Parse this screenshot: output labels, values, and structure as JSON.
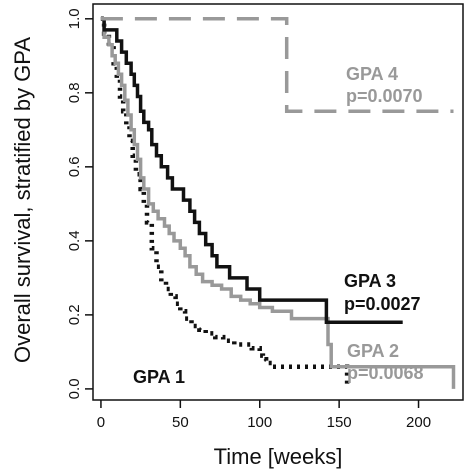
{
  "chart_data": {
    "type": "line",
    "step": true,
    "xlabel": "Time [weeks]",
    "ylabel": "Overall survival, stratified by GPA",
    "xlim": [
      -5,
      228
    ],
    "ylim": [
      -0.03,
      1.04
    ],
    "xticks": [
      0,
      50,
      100,
      150,
      200
    ],
    "yticks": [
      0.0,
      0.2,
      0.4,
      0.6,
      0.8,
      1.0
    ],
    "xtick_labels": [
      "0",
      "50",
      "100",
      "150",
      "200"
    ],
    "ytick_labels": [
      "0.0",
      "0.2",
      "0.4",
      "0.6",
      "0.8",
      "1.0"
    ],
    "grid": false,
    "series": [
      {
        "name": "GPA 1",
        "label": "GPA 1",
        "color": "#111111",
        "style": "dotted",
        "points": [
          [
            0,
            1.0
          ],
          [
            2,
            0.96
          ],
          [
            5,
            0.92
          ],
          [
            8,
            0.88
          ],
          [
            10,
            0.84
          ],
          [
            12,
            0.79
          ],
          [
            14,
            0.75
          ],
          [
            16,
            0.71
          ],
          [
            18,
            0.67
          ],
          [
            20,
            0.63
          ],
          [
            22,
            0.58
          ],
          [
            25,
            0.54
          ],
          [
            27,
            0.5
          ],
          [
            29,
            0.45
          ],
          [
            32,
            0.38
          ],
          [
            35,
            0.33
          ],
          [
            38,
            0.29
          ],
          [
            41,
            0.27
          ],
          [
            44,
            0.25
          ],
          [
            47,
            0.23
          ],
          [
            50,
            0.21
          ],
          [
            53,
            0.19
          ],
          [
            57,
            0.17
          ],
          [
            62,
            0.16
          ],
          [
            66,
            0.15
          ],
          [
            72,
            0.14
          ],
          [
            77,
            0.13
          ],
          [
            84,
            0.12
          ],
          [
            90,
            0.12
          ],
          [
            95,
            0.11
          ],
          [
            100,
            0.09
          ],
          [
            102,
            0.08
          ],
          [
            104,
            0.07
          ],
          [
            108,
            0.06
          ],
          [
            140,
            0.06
          ],
          [
            155,
            0.06
          ],
          [
            155,
            0.01
          ]
        ]
      },
      {
        "name": "GPA 2",
        "label": "GPA 2",
        "pvalue": "p=0.0068",
        "color": "#999999",
        "style": "solid",
        "points": [
          [
            0,
            1.0
          ],
          [
            2,
            0.95
          ],
          [
            5,
            0.93
          ],
          [
            7,
            0.9
          ],
          [
            9,
            0.88
          ],
          [
            11,
            0.85
          ],
          [
            13,
            0.82
          ],
          [
            15,
            0.78
          ],
          [
            17,
            0.74
          ],
          [
            19,
            0.7
          ],
          [
            21,
            0.66
          ],
          [
            23,
            0.62
          ],
          [
            25,
            0.57
          ],
          [
            27,
            0.54
          ],
          [
            30,
            0.5
          ],
          [
            33,
            0.48
          ],
          [
            36,
            0.46
          ],
          [
            40,
            0.44
          ],
          [
            43,
            0.42
          ],
          [
            46,
            0.4
          ],
          [
            50,
            0.38
          ],
          [
            53,
            0.36
          ],
          [
            56,
            0.33
          ],
          [
            60,
            0.31
          ],
          [
            64,
            0.29
          ],
          [
            70,
            0.28
          ],
          [
            76,
            0.27
          ],
          [
            82,
            0.25
          ],
          [
            88,
            0.24
          ],
          [
            94,
            0.23
          ],
          [
            100,
            0.22
          ],
          [
            108,
            0.21
          ],
          [
            116,
            0.21
          ],
          [
            120,
            0.19
          ],
          [
            130,
            0.19
          ],
          [
            140,
            0.19
          ],
          [
            143,
            0.12
          ],
          [
            145,
            0.06
          ],
          [
            150,
            0.06
          ],
          [
            200,
            0.06
          ],
          [
            222,
            0.06
          ],
          [
            222,
            0.0
          ]
        ]
      },
      {
        "name": "GPA 3",
        "label": "GPA 3",
        "pvalue": "p=0.0027",
        "color": "#111111",
        "style": "solid",
        "points": [
          [
            0,
            1.0
          ],
          [
            2,
            0.97
          ],
          [
            8,
            0.97
          ],
          [
            10,
            0.94
          ],
          [
            13,
            0.91
          ],
          [
            16,
            0.88
          ],
          [
            19,
            0.85
          ],
          [
            21,
            0.82
          ],
          [
            23,
            0.79
          ],
          [
            25,
            0.75
          ],
          [
            27,
            0.72
          ],
          [
            30,
            0.7
          ],
          [
            32,
            0.66
          ],
          [
            35,
            0.63
          ],
          [
            38,
            0.6
          ],
          [
            42,
            0.57
          ],
          [
            45,
            0.54
          ],
          [
            49,
            0.54
          ],
          [
            52,
            0.51
          ],
          [
            56,
            0.48
          ],
          [
            59,
            0.45
          ],
          [
            62,
            0.42
          ],
          [
            66,
            0.39
          ],
          [
            70,
            0.36
          ],
          [
            73,
            0.33
          ],
          [
            77,
            0.33
          ],
          [
            81,
            0.3
          ],
          [
            90,
            0.3
          ],
          [
            92,
            0.27
          ],
          [
            97,
            0.27
          ],
          [
            100,
            0.24
          ],
          [
            142,
            0.24
          ],
          [
            142,
            0.18
          ],
          [
            190,
            0.18
          ]
        ]
      },
      {
        "name": "GPA 4",
        "label": "GPA 4",
        "pvalue": "p=0.0070",
        "color": "#999999",
        "style": "dashed",
        "points": [
          [
            0,
            1.0
          ],
          [
            117,
            1.0
          ],
          [
            117,
            0.75
          ],
          [
            222,
            0.75
          ]
        ]
      }
    ]
  }
}
